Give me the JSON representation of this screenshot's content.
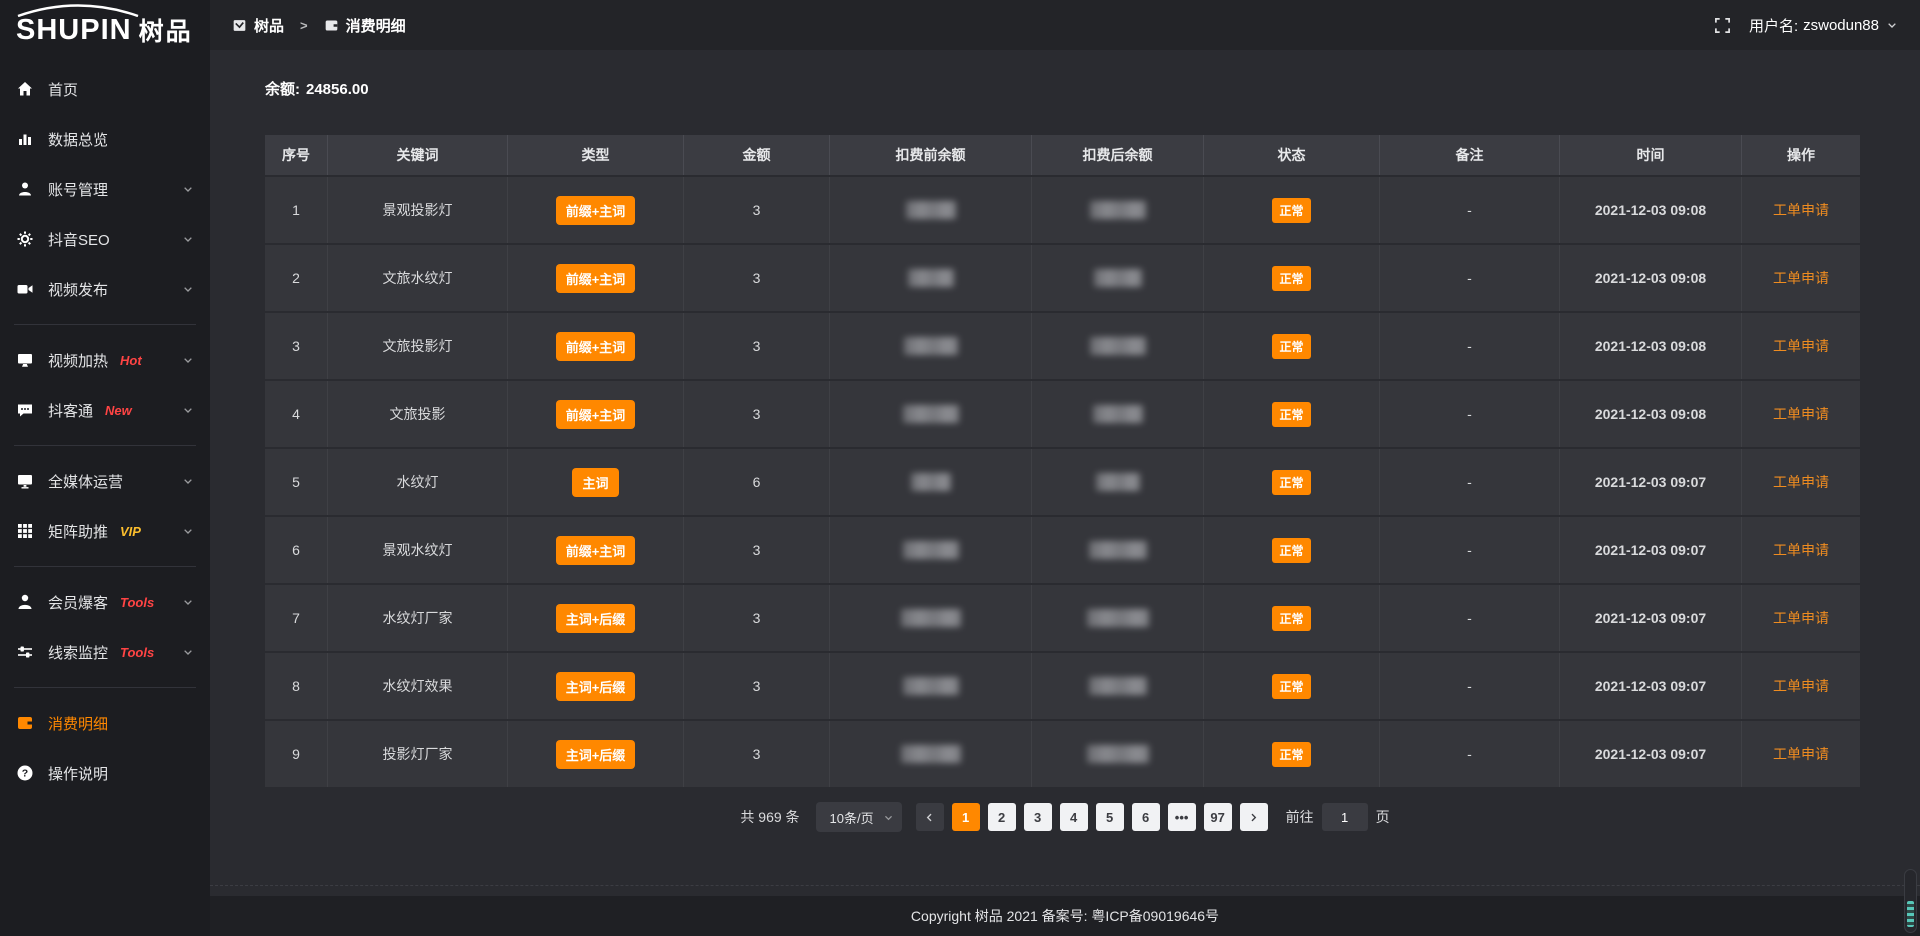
{
  "colors": {
    "accent": "#ff8800",
    "hot": "#ff4444",
    "vip": "#fdbf2d",
    "active_menu": "#f08519"
  },
  "brand": {
    "logo_en": "SHUPIN",
    "logo_cn": "树品"
  },
  "header": {
    "breadcrumb_home": "树品",
    "breadcrumb_sep": ">",
    "breadcrumb_page": "消费明细",
    "username_label": "用户名:",
    "username": "zswodun88"
  },
  "sidebar": {
    "items": [
      {
        "label": "首页",
        "icon": "home-icon"
      },
      {
        "label": "数据总览",
        "icon": "chart-icon"
      },
      {
        "label": "账号管理",
        "icon": "user-icon",
        "chevron": true
      },
      {
        "label": "抖音SEO",
        "icon": "gear-icon",
        "chevron": true
      },
      {
        "label": "视频发布",
        "icon": "video-icon",
        "chevron": true
      },
      {
        "divider": true
      },
      {
        "label": "视频加热",
        "icon": "heat-icon",
        "chevron": true,
        "badge": "Hot",
        "badge_color": "hot"
      },
      {
        "label": "抖客通",
        "icon": "chat-icon",
        "chevron": true,
        "badge": "New",
        "badge_color": "hot"
      },
      {
        "divider": true
      },
      {
        "label": "全媒体运营",
        "icon": "monitor-icon",
        "chevron": true
      },
      {
        "label": "矩阵助推",
        "icon": "grid-icon",
        "chevron": true,
        "badge": "VIP",
        "badge_color": "vip"
      },
      {
        "divider": true
      },
      {
        "label": "会员爆客",
        "icon": "member-icon",
        "chevron": true,
        "badge": "Tools",
        "badge_color": "hot"
      },
      {
        "label": "线索监控",
        "icon": "sliders-icon",
        "chevron": true,
        "badge": "Tools",
        "badge_color": "hot"
      },
      {
        "divider": true
      },
      {
        "label": "消费明细",
        "icon": "wallet-icon",
        "active": true
      },
      {
        "label": "操作说明",
        "icon": "help-icon"
      }
    ]
  },
  "balance": {
    "label": "余额:",
    "value": "24856.00"
  },
  "table": {
    "columns": [
      "序号",
      "关键词",
      "类型",
      "金额",
      "扣费前余额",
      "扣费后余额",
      "状态",
      "备注",
      "时间",
      "操作"
    ],
    "masked_columns": [
      "扣费前余额",
      "扣费后余额"
    ],
    "rows": [
      {
        "index": "1",
        "keyword": "景观投影灯",
        "type": "前缀+主词",
        "amount": "3",
        "status": "正常",
        "remark": "-",
        "time": "2021-12-03 09:08",
        "action": "工单申请"
      },
      {
        "index": "2",
        "keyword": "文旅水纹灯",
        "type": "前缀+主词",
        "amount": "3",
        "status": "正常",
        "remark": "-",
        "time": "2021-12-03 09:08",
        "action": "工单申请"
      },
      {
        "index": "3",
        "keyword": "文旅投影灯",
        "type": "前缀+主词",
        "amount": "3",
        "status": "正常",
        "remark": "-",
        "time": "2021-12-03 09:08",
        "action": "工单申请"
      },
      {
        "index": "4",
        "keyword": "文旅投影",
        "type": "前缀+主词",
        "amount": "3",
        "status": "正常",
        "remark": "-",
        "time": "2021-12-03 09:08",
        "action": "工单申请"
      },
      {
        "index": "5",
        "keyword": "水纹灯",
        "type": "主词",
        "amount": "6",
        "status": "正常",
        "remark": "-",
        "time": "2021-12-03 09:07",
        "action": "工单申请"
      },
      {
        "index": "6",
        "keyword": "景观水纹灯",
        "type": "前缀+主词",
        "amount": "3",
        "status": "正常",
        "remark": "-",
        "time": "2021-12-03 09:07",
        "action": "工单申请"
      },
      {
        "index": "7",
        "keyword": "水纹灯厂家",
        "type": "主词+后缀",
        "amount": "3",
        "status": "正常",
        "remark": "-",
        "time": "2021-12-03 09:07",
        "action": "工单申请"
      },
      {
        "index": "8",
        "keyword": "水纹灯效果",
        "type": "主词+后缀",
        "amount": "3",
        "status": "正常",
        "remark": "-",
        "time": "2021-12-03 09:07",
        "action": "工单申请"
      },
      {
        "index": "9",
        "keyword": "投影灯厂家",
        "type": "主词+后缀",
        "amount": "3",
        "status": "正常",
        "remark": "-",
        "time": "2021-12-03 09:07",
        "action": "工单申请"
      }
    ]
  },
  "pagination": {
    "total_label": "共 969 条",
    "page_size_label": "10条/页",
    "pages": [
      "1",
      "2",
      "3",
      "4",
      "5",
      "6",
      "•••",
      "97"
    ],
    "active_page": "1",
    "goto_label": "前往",
    "goto_value": "1",
    "goto_unit": "页"
  },
  "footer": {
    "copyright": "Copyright 树品 2021 备案号: 粤ICP备09019646号"
  }
}
